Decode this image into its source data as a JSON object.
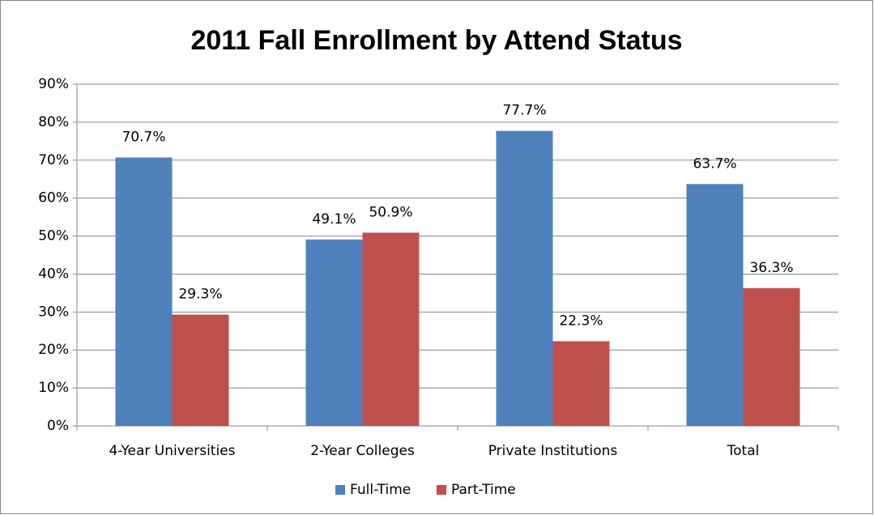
{
  "chart_data": {
    "type": "bar",
    "title": "2011 Fall Enrollment by Attend Status",
    "categories": [
      "4-Year Universities",
      "2-Year Colleges",
      "Private Institutions",
      "Total"
    ],
    "series": [
      {
        "name": "Full-Time",
        "color": "#4f81bd",
        "values": [
          70.7,
          49.1,
          77.7,
          63.7
        ],
        "value_labels": [
          "70.7%",
          "49.1%",
          "77.7%",
          "63.7%"
        ]
      },
      {
        "name": "Part-Time",
        "color": "#c0504d",
        "values": [
          29.3,
          50.9,
          22.3,
          36.3
        ],
        "value_labels": [
          "29.3%",
          "50.9%",
          "22.3%",
          "36.3%"
        ]
      }
    ],
    "ylim": [
      0,
      90
    ],
    "yticks": [
      {
        "value": 0,
        "label": "0%"
      },
      {
        "value": 10,
        "label": "10%"
      },
      {
        "value": 20,
        "label": "20%"
      },
      {
        "value": 30,
        "label": "30%"
      },
      {
        "value": 40,
        "label": "40%"
      },
      {
        "value": 50,
        "label": "50%"
      },
      {
        "value": 60,
        "label": "60%"
      },
      {
        "value": 70,
        "label": "70%"
      },
      {
        "value": 80,
        "label": "80%"
      },
      {
        "value": 90,
        "label": "90%"
      }
    ],
    "grid": true,
    "legend": "bottom"
  }
}
